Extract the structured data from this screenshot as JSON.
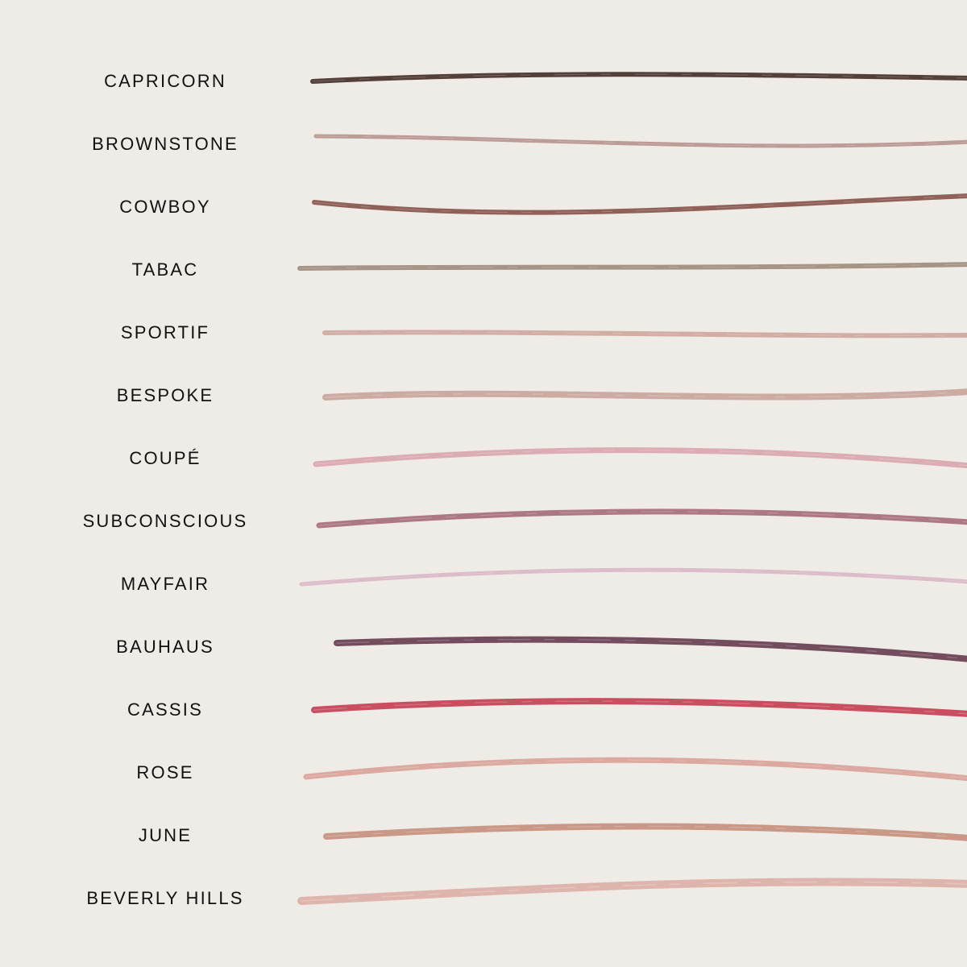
{
  "background": "#efebe7",
  "text_color": "#111111",
  "shades": [
    {
      "name": "CAPRICORN",
      "color": "#4b3631"
    },
    {
      "name": "BROWNSTONE",
      "color": "#b89891"
    },
    {
      "name": "COWBOY",
      "color": "#8a5a50"
    },
    {
      "name": "TABAC",
      "color": "#a18f80"
    },
    {
      "name": "SPORTIF",
      "color": "#d0aaa0"
    },
    {
      "name": "BESPOKE",
      "color": "#c8a89e"
    },
    {
      "name": "COUPÉ",
      "color": "#d9a9b1"
    },
    {
      "name": "SUBCONSCIOUS",
      "color": "#a9727f"
    },
    {
      "name": "MAYFAIR",
      "color": "#d9b9c6"
    },
    {
      "name": "BAUHAUS",
      "color": "#6b4356"
    },
    {
      "name": "CASSIS",
      "color": "#c64659"
    },
    {
      "name": "ROSE",
      "color": "#d9a59c"
    },
    {
      "name": "JUNE",
      "color": "#c79481"
    },
    {
      "name": "BEVERLY HILLS",
      "color": "#dcb2aa"
    }
  ]
}
